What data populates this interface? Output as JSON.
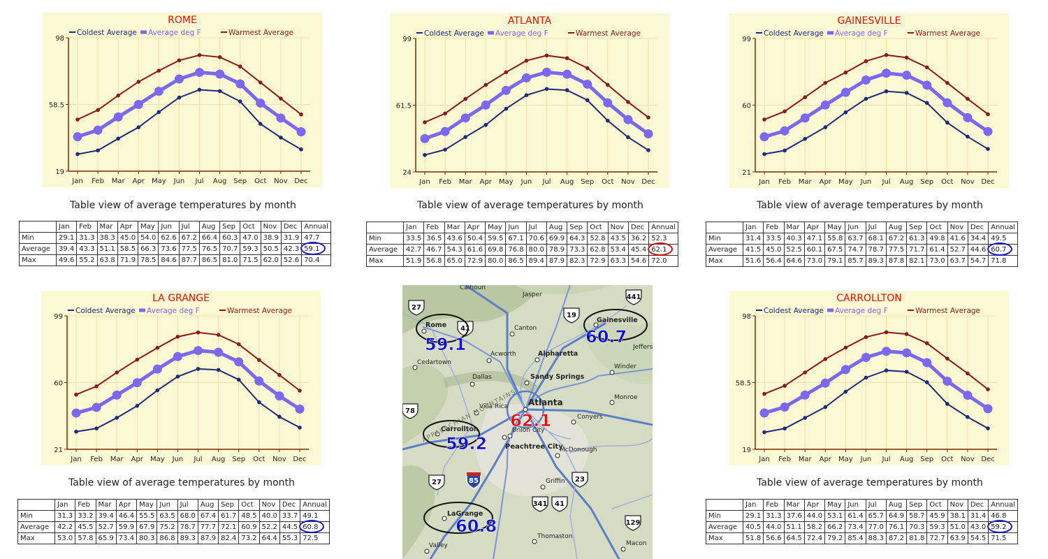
{
  "months": [
    "Jan",
    "Feb",
    "Mar",
    "Apr",
    "May",
    "Jun",
    "Jul",
    "Aug",
    "Sep",
    "Oct",
    "Nov",
    "Dec"
  ],
  "table_header_annual": "Annual",
  "row_labels": [
    "Min",
    "Average",
    "Max"
  ],
  "caption": "Table view of average temperatures by month",
  "legend": [
    "Coldest Average",
    "Average deg F",
    "Warmest Average"
  ],
  "colors": {
    "coldest": "#1f2a7a",
    "average": "#7b68ee",
    "warmest": "#8b1a1a",
    "title": "#dd1100",
    "ring_blue": "#1a1acc",
    "ring_red": "#d01010",
    "chart_bg": "#fbf8d4",
    "grid": "#f2dfa8",
    "axis": "#7a2a00"
  },
  "chart_data": [
    {
      "type": "line",
      "title": "ROME",
      "categories": [
        "Jan",
        "Feb",
        "Mar",
        "Apr",
        "May",
        "Jun",
        "Jul",
        "Aug",
        "Sep",
        "Oct",
        "Nov",
        "Dec"
      ],
      "yticks": [
        "98",
        "58.5",
        "19"
      ],
      "ylim": [
        19,
        98
      ],
      "series": [
        {
          "name": "Coldest Average",
          "values": [
            29.1,
            31.3,
            38.3,
            45.0,
            54.0,
            62.6,
            67.2,
            66.4,
            60.3,
            47.0,
            38.9,
            31.9
          ]
        },
        {
          "name": "Average deg F",
          "values": [
            39.4,
            43.3,
            51.1,
            58.5,
            66.3,
            73.6,
            77.5,
            76.5,
            70.7,
            59.3,
            50.5,
            42.3
          ]
        },
        {
          "name": "Warmest Average",
          "values": [
            49.6,
            55.2,
            63.8,
            71.9,
            78.5,
            84.6,
            87.7,
            86.5,
            81.0,
            71.5,
            62.0,
            52.6
          ]
        }
      ]
    },
    {
      "type": "line",
      "title": "ATLANTA",
      "categories": [
        "Jan",
        "Feb",
        "Mar",
        "Apr",
        "May",
        "Jun",
        "Jul",
        "Aug",
        "Sep",
        "Oct",
        "Nov",
        "Dec"
      ],
      "yticks": [
        "99",
        "61.5",
        "24"
      ],
      "ylim": [
        24,
        99
      ],
      "series": [
        {
          "name": "Coldest Average",
          "values": [
            33.5,
            36.5,
            43.6,
            50.4,
            59.5,
            67.1,
            70.6,
            69.9,
            64.3,
            52.8,
            43.5,
            36.2
          ]
        },
        {
          "name": "Average deg F",
          "values": [
            42.7,
            46.7,
            54.3,
            61.6,
            69.8,
            76.8,
            80.0,
            78.9,
            73.3,
            62.8,
            53.4,
            45.4
          ]
        },
        {
          "name": "Warmest Average",
          "values": [
            51.9,
            56.8,
            65.0,
            72.9,
            80.0,
            86.5,
            89.4,
            87.9,
            82.3,
            72.9,
            63.3,
            54.6
          ]
        }
      ]
    },
    {
      "type": "line",
      "title": "GAINESVILLE",
      "categories": [
        "Jan",
        "Feb",
        "Mar",
        "Apr",
        "May",
        "Jun",
        "Jul",
        "Aug",
        "Sep",
        "Oct",
        "Nov",
        "Dec"
      ],
      "yticks": [
        "99",
        "60",
        "21"
      ],
      "ylim": [
        21,
        99
      ],
      "series": [
        {
          "name": "Coldest Average",
          "values": [
            31.4,
            33.5,
            40.3,
            47.1,
            55.8,
            63.7,
            68.1,
            67.2,
            61.3,
            49.8,
            41.6,
            34.4
          ]
        },
        {
          "name": "Average deg F",
          "values": [
            41.5,
            45.0,
            52.5,
            60.1,
            67.5,
            74.7,
            78.7,
            77.5,
            71.7,
            61.4,
            52.7,
            44.6
          ]
        },
        {
          "name": "Warmest Average",
          "values": [
            51.6,
            56.4,
            64.6,
            73.0,
            79.1,
            85.7,
            89.3,
            87.8,
            82.1,
            73.0,
            63.7,
            54.7
          ]
        }
      ]
    },
    {
      "type": "line",
      "title": "LA GRANGE",
      "categories": [
        "Jan",
        "Feb",
        "Mar",
        "Apr",
        "May",
        "Jun",
        "Jul",
        "Aug",
        "Sep",
        "Oct",
        "Nov",
        "Dec"
      ],
      "yticks": [
        "99",
        "60",
        "21"
      ],
      "ylim": [
        21,
        99
      ],
      "series": [
        {
          "name": "Coldest Average",
          "values": [
            31.3,
            33.2,
            39.4,
            46.4,
            55.5,
            63.5,
            68.0,
            67.4,
            61.7,
            48.5,
            40.0,
            33.7
          ]
        },
        {
          "name": "Average deg F",
          "values": [
            42.2,
            45.5,
            52.7,
            59.9,
            67.9,
            75.2,
            78.7,
            77.7,
            72.1,
            60.9,
            52.2,
            44.5
          ]
        },
        {
          "name": "Warmest Average",
          "values": [
            53.0,
            57.8,
            65.9,
            73.4,
            80.3,
            86.8,
            89.3,
            87.9,
            82.4,
            73.2,
            64.4,
            55.3
          ]
        }
      ]
    },
    {
      "type": "line",
      "title": "CARROLLTON",
      "categories": [
        "Jan",
        "Feb",
        "Mar",
        "Apr",
        "May",
        "Jun",
        "Jul",
        "Aug",
        "Sep",
        "Oct",
        "Nov",
        "Dec"
      ],
      "yticks": [
        "98",
        "58.5",
        "19"
      ],
      "ylim": [
        19,
        98
      ],
      "series": [
        {
          "name": "Coldest Average",
          "values": [
            29.1,
            31.3,
            37.6,
            44.0,
            53.1,
            61.4,
            65.7,
            64.9,
            58.7,
            45.9,
            38.1,
            31.4
          ]
        },
        {
          "name": "Average deg F",
          "values": [
            40.5,
            44.0,
            51.1,
            58.2,
            66.2,
            73.4,
            77.0,
            76.1,
            70.3,
            59.3,
            51.0,
            43.0
          ]
        },
        {
          "name": "Warmest Average",
          "values": [
            51.8,
            56.6,
            64.5,
            72.4,
            79.2,
            85.4,
            88.3,
            87.2,
            81.8,
            72.7,
            63.9,
            54.5
          ]
        }
      ]
    }
  ],
  "annual": [
    {
      "min": "47.7",
      "avg": "59.1",
      "max": "70.4"
    },
    {
      "min": "52.3",
      "avg": "62.1",
      "max": "72.0"
    },
    {
      "min": "49.5",
      "avg": "60.7",
      "max": "71.8"
    },
    {
      "min": "49.1",
      "avg": "60.8",
      "max": "72.5"
    },
    {
      "min": "46.8",
      "avg": "59.2",
      "max": "71.5"
    }
  ],
  "map": {
    "cities": [
      "Calhoun",
      "Jasper",
      "Rome",
      "Canton",
      "Gainesville",
      "Acworth",
      "Alpharetta",
      "Jefferson",
      "Cedartown",
      "Dallas",
      "Sandy Springs",
      "Winder",
      "Villa Rica",
      "Atlanta",
      "Monroe",
      "Conyers",
      "Carrollton",
      "Union City",
      "Peachtree City",
      "McDonough",
      "Griffin",
      "LaGrange",
      "Thomaston",
      "Macon",
      "Valley"
    ],
    "region_label": "APPALACHIAN MOUNTAINS",
    "highlights": [
      {
        "city": "Rome",
        "value": "59.1"
      },
      {
        "city": "Gainesville",
        "value": "60.7"
      },
      {
        "city": "Atlanta",
        "value": "62.1"
      },
      {
        "city": "Carrollton",
        "value": "59.2"
      },
      {
        "city": "LaGrange",
        "value": "60.8"
      }
    ],
    "shields": [
      "27",
      "41",
      "19",
      "441",
      "78",
      "85",
      "27",
      "23",
      "341",
      "41",
      "129"
    ]
  }
}
